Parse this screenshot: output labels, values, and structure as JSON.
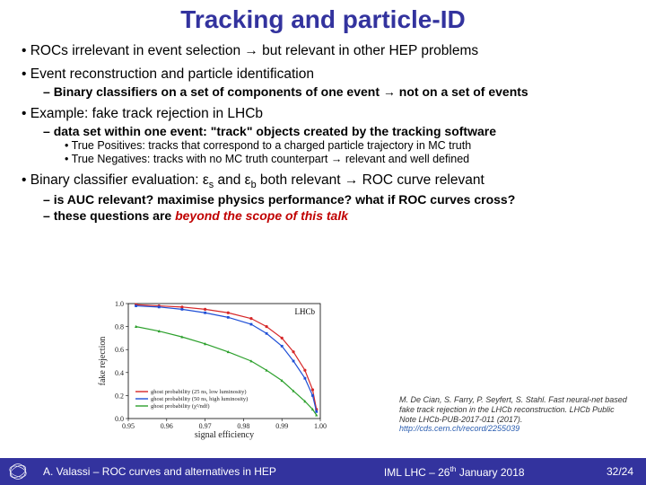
{
  "title": "Tracking and particle-ID",
  "bullets": {
    "b1": "ROCs irrelevant in event selection ",
    "b1_tail": " but relevant in other HEP problems",
    "b2": "Event reconstruction and particle identification",
    "b2_1a": "Binary classifiers on a set of components of one event ",
    "b2_1b": " not on a set of events",
    "b3": "Example: fake track rejection in LHCb",
    "b3_1": "data set within one event: \"track\" objects created by the tracking software",
    "b3_1_1": "True Positives: tracks that correspond to a charged particle trajectory in MC truth",
    "b3_1_2a": "True Negatives: tracks with no MC truth counterpart ",
    "b3_1_2b": " relevant and well defined",
    "b4a": "Binary classifier evaluation: ε",
    "b4b": " and ε",
    "b4c": " both relevant ",
    "b4d": " ROC curve relevant",
    "b4_1": "is AUC relevant? maximise physics performance? what if ROC curves cross?",
    "b4_2a": "these questions are ",
    "b4_2b": "beyond the scope of this talk"
  },
  "arrow": "→",
  "sub_s": "s",
  "sub_b": "b",
  "chart": {
    "type": "line",
    "xlabel": "signal efficiency",
    "ylabel": "fake rejection",
    "xlim": [
      0.95,
      1.0
    ],
    "ylim": [
      0.0,
      1.0
    ],
    "xticks": [
      0.95,
      0.96,
      0.97,
      0.98,
      0.99,
      1.0
    ],
    "yticks": [
      0.0,
      0.2,
      0.4,
      0.6,
      0.8,
      1.0
    ],
    "background_color": "#ffffff",
    "axis_color": "#000000",
    "lhcb_text": "LHCb",
    "legend": [
      {
        "label": "ghost probability (25 ns, low luminosity)",
        "color": "#d62728"
      },
      {
        "label": "ghost probability (50 ns, high luminosity)",
        "color": "#1f4fd6"
      },
      {
        "label": "ghost probability (χ²/ndf)",
        "color": "#2ca02c"
      }
    ],
    "series": [
      {
        "color": "#d62728",
        "marker": "circle",
        "x": [
          0.952,
          0.958,
          0.964,
          0.97,
          0.976,
          0.982,
          0.986,
          0.99,
          0.993,
          0.996,
          0.998,
          0.999
        ],
        "y": [
          0.99,
          0.98,
          0.97,
          0.95,
          0.92,
          0.87,
          0.8,
          0.7,
          0.58,
          0.42,
          0.25,
          0.08
        ]
      },
      {
        "color": "#1f4fd6",
        "marker": "square",
        "x": [
          0.952,
          0.958,
          0.964,
          0.97,
          0.976,
          0.982,
          0.986,
          0.99,
          0.993,
          0.996,
          0.998,
          0.999
        ],
        "y": [
          0.98,
          0.97,
          0.95,
          0.92,
          0.88,
          0.82,
          0.74,
          0.63,
          0.5,
          0.35,
          0.2,
          0.06
        ]
      },
      {
        "color": "#2ca02c",
        "marker": "triangle",
        "x": [
          0.952,
          0.958,
          0.964,
          0.97,
          0.976,
          0.982,
          0.986,
          0.99,
          0.993,
          0.996,
          0.998,
          0.999
        ],
        "y": [
          0.8,
          0.76,
          0.71,
          0.65,
          0.58,
          0.5,
          0.42,
          0.33,
          0.24,
          0.15,
          0.08,
          0.03
        ]
      }
    ]
  },
  "citation": {
    "line1": "M. De Cian, S. Farry, P. Seyfert, S. Stahl. Fast neural-net based fake track rejection in the LHCb reconstruction. LHCb Public Note LHCb-PUB-2017-011 (2017).",
    "link": "http://cds.cern.ch/record/2255039"
  },
  "footer": {
    "left": "A. Valassi – ROC curves and alternatives in HEP",
    "center": "IML LHC – 26",
    "center_sup": "th",
    "center_tail": " January 2018",
    "right": "32/24"
  },
  "colors": {
    "title": "#33339e",
    "footer_bg": "#33339e",
    "red": "#c00000"
  }
}
